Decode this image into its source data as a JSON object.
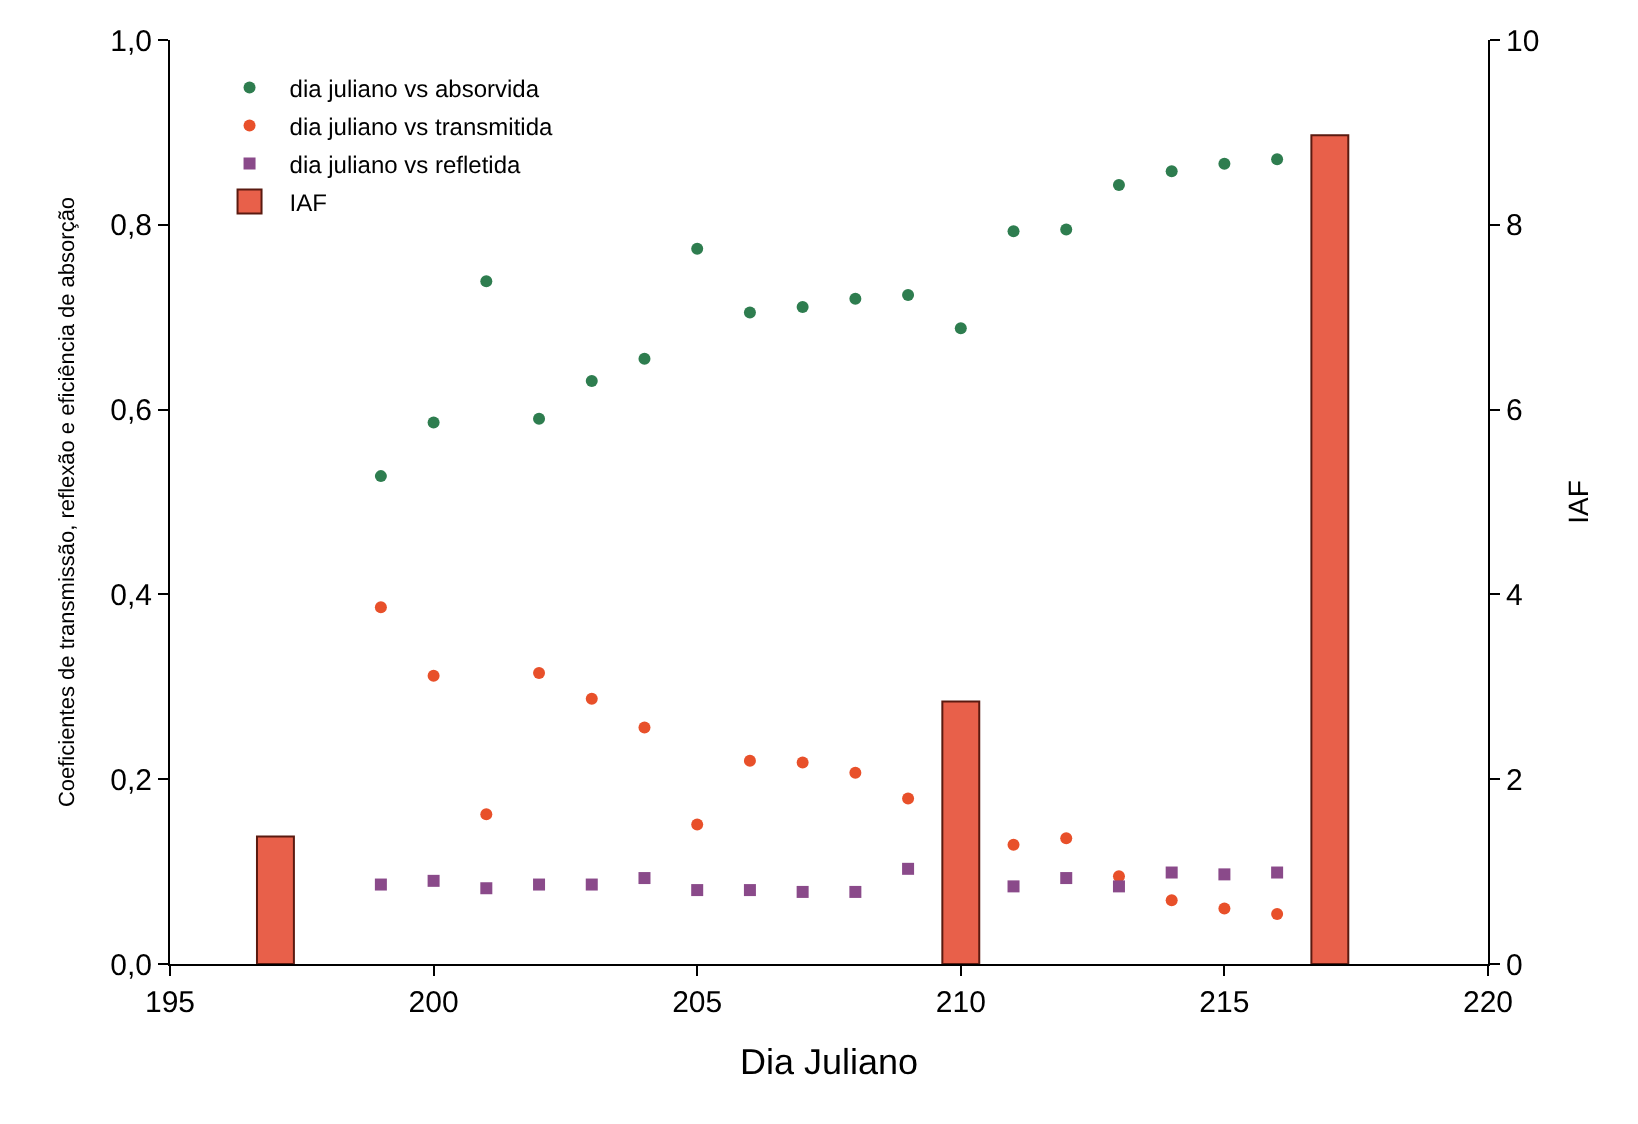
{
  "chart_data": {
    "type": "scatter",
    "xlabel": "Dia Juliano",
    "ylabel": "Coeficientes de transmissão, reflexão e eficiência de absorção",
    "y2label": "IAF",
    "xlim": [
      195,
      220
    ],
    "xticks": [
      195,
      200,
      205,
      210,
      215,
      220
    ],
    "ylim": [
      0,
      1
    ],
    "yticks": [
      {
        "value": 0,
        "label": "0,0"
      },
      {
        "value": 0.2,
        "label": "0,2"
      },
      {
        "value": 0.4,
        "label": "0,4"
      },
      {
        "value": 0.6,
        "label": "0,6"
      },
      {
        "value": 0.8,
        "label": "0,8"
      },
      {
        "value": 1,
        "label": "1,0"
      }
    ],
    "y2lim": [
      0,
      10
    ],
    "y2ticks": [
      0,
      2,
      4,
      6,
      8,
      10
    ],
    "legend": "top left",
    "series": [
      {
        "name": "dia juliano vs absorvida",
        "color": "#2e7d4f",
        "marker": "circle",
        "x": [
          199,
          200,
          201,
          202,
          203,
          204,
          205,
          206,
          207,
          208,
          209,
          210,
          211,
          212,
          213,
          214,
          215,
          216
        ],
        "values": [
          0.528,
          0.586,
          0.739,
          0.59,
          0.631,
          0.655,
          0.774,
          0.705,
          0.711,
          0.72,
          0.724,
          0.688,
          0.793,
          0.795,
          0.843,
          0.858,
          0.866,
          0.871
        ]
      },
      {
        "name": "dia juliano vs transmitida",
        "color": "#e8502a",
        "marker": "circle",
        "x": [
          199,
          200,
          201,
          202,
          203,
          204,
          205,
          206,
          207,
          208,
          209,
          211,
          212,
          213,
          214,
          215,
          216
        ],
        "values": [
          0.386,
          0.312,
          0.162,
          0.315,
          0.287,
          0.256,
          0.151,
          0.22,
          0.218,
          0.207,
          0.179,
          0.129,
          0.136,
          0.095,
          0.069,
          0.06,
          0.054
        ]
      },
      {
        "name": "dia juliano vs refletida",
        "color": "#8a4a8a",
        "marker": "square",
        "x": [
          199,
          200,
          201,
          202,
          203,
          204,
          205,
          206,
          207,
          208,
          209,
          211,
          212,
          213,
          214,
          215,
          216
        ],
        "values": [
          0.086,
          0.09,
          0.082,
          0.086,
          0.086,
          0.093,
          0.08,
          0.08,
          0.078,
          0.078,
          0.103,
          0.084,
          0.093,
          0.084,
          0.099,
          0.097,
          0.099
        ]
      },
      {
        "name": "IAF",
        "type": "bar",
        "axis": "y2",
        "color": "#e8604a",
        "x": [
          197,
          210,
          217
        ],
        "values": [
          1.38,
          2.84,
          8.97
        ]
      }
    ]
  }
}
